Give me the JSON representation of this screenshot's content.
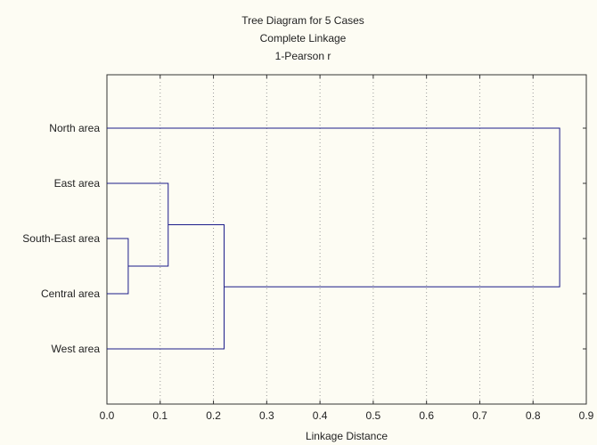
{
  "chart_data": {
    "type": "dendrogram",
    "title": [
      "Tree Diagram for 5 Cases",
      "Complete Linkage",
      "1-Pearson r"
    ],
    "xlabel": "Linkage Distance",
    "xlim": [
      0.0,
      0.9
    ],
    "x_ticks": [
      "0.0",
      "0.1",
      "0.2",
      "0.3",
      "0.4",
      "0.5",
      "0.6",
      "0.7",
      "0.8",
      "0.9"
    ],
    "grid": "vertical dotted",
    "leaves": [
      "North area",
      "East area",
      "South-East area",
      "Central area",
      "West area"
    ],
    "merges": [
      {
        "a": "South-East area",
        "b": "Central area",
        "distance": 0.04
      },
      {
        "a": "East area",
        "b": "(South-East area, Central area)",
        "distance": 0.115
      },
      {
        "a": "(East area, South-East area, Central area)",
        "b": "West area",
        "distance": 0.22
      },
      {
        "a": "North area",
        "b": "(East area, South-East area, Central area, West area)",
        "distance": 0.85
      }
    ],
    "line_color": "#1c1c8a"
  }
}
